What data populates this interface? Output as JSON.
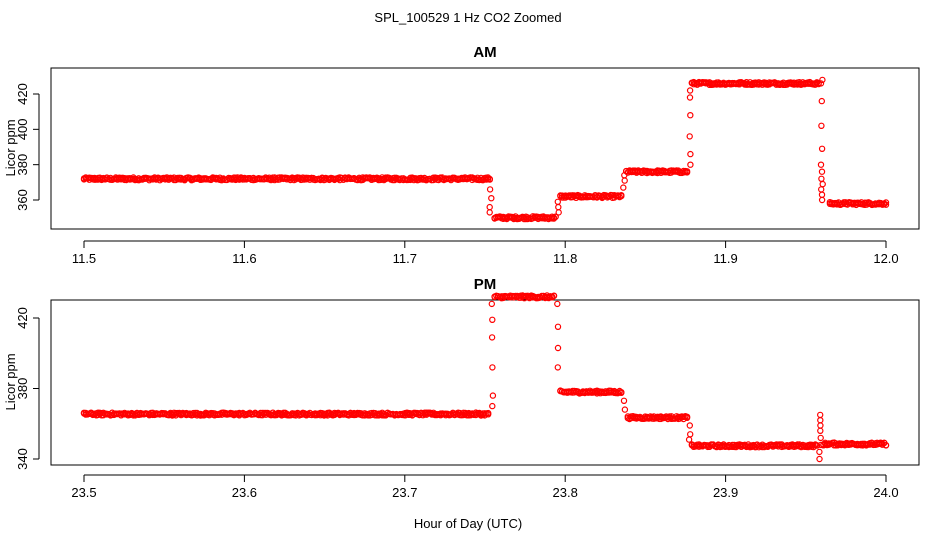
{
  "title": "SPL_100529 1 Hz CO2 Zoomed",
  "xlabel": "Hour of Day (UTC)",
  "colors": {
    "points": "#ff0000"
  },
  "chart_data": [
    {
      "type": "scatter",
      "panel_title": "AM",
      "ylabel": "Licor ppm",
      "xlim": [
        11.5,
        12.0
      ],
      "ylim": [
        345,
        435
      ],
      "xticks": [
        11.5,
        11.6,
        11.7,
        11.8,
        11.9,
        12.0
      ],
      "xtick_labels": [
        "11.5",
        "11.6",
        "11.7",
        "11.8",
        "11.9",
        "12.0"
      ],
      "yticks": [
        360,
        380,
        400,
        420
      ],
      "ytick_labels": [
        "360",
        "380",
        "400",
        "420"
      ],
      "series": [
        {
          "segments": [
            {
              "x_start": 11.5,
              "x_end": 11.753,
              "y": 372
            },
            {
              "x_start": 11.756,
              "x_end": 11.794,
              "y": 350
            },
            {
              "x_start": 11.797,
              "x_end": 11.835,
              "y": 362
            },
            {
              "x_start": 11.838,
              "x_end": 11.876,
              "y": 376
            },
            {
              "x_start": 11.879,
              "x_end": 11.958,
              "y": 426
            },
            {
              "x_start": 11.965,
              "x_end": 12.0,
              "y": 358
            }
          ],
          "transitions": [
            {
              "x": 11.7535,
              "y": [
                366,
                361,
                356,
                353
              ]
            },
            {
              "x": 11.7955,
              "y": [
                353,
                356,
                359
              ]
            },
            {
              "x": 11.8365,
              "y": [
                367,
                371,
                374
              ]
            },
            {
              "x": 11.8775,
              "y": [
                380,
                386,
                396,
                408,
                418,
                422
              ]
            },
            {
              "x": 11.96,
              "y": [
                428,
                426,
                416,
                402,
                389,
                380,
                376,
                372,
                369,
                366,
                363,
                360
              ]
            }
          ]
        }
      ]
    },
    {
      "type": "scatter",
      "panel_title": "PM",
      "ylabel": "Licor ppm",
      "xlim": [
        23.5,
        24.0
      ],
      "ylim": [
        338,
        440
      ],
      "xticks": [
        23.5,
        23.6,
        23.7,
        23.8,
        23.9,
        24.0
      ],
      "xtick_labels": [
        "23.5",
        "23.6",
        "23.7",
        "23.8",
        "23.9",
        "24.0"
      ],
      "yticks": [
        340,
        380,
        420
      ],
      "ytick_labels": [
        "340",
        "380",
        "420"
      ],
      "series": [
        {
          "segments": [
            {
              "x_start": 23.5,
              "x_end": 23.752,
              "y": 365.5
            },
            {
              "x_start": 23.756,
              "x_end": 23.793,
              "y": 432
            },
            {
              "x_start": 23.797,
              "x_end": 23.835,
              "y": 378
            },
            {
              "x_start": 23.839,
              "x_end": 23.876,
              "y": 363.5
            },
            {
              "x_start": 23.879,
              "x_end": 23.957,
              "y": 347.5
            },
            {
              "x_start": 23.961,
              "x_end": 24.0,
              "y": 348.5
            }
          ],
          "transitions": [
            {
              "x": 23.7545,
              "y": [
                370,
                376,
                392,
                409,
                419,
                428
              ]
            },
            {
              "x": 23.795,
              "y": [
                428,
                415,
                403,
                392
              ]
            },
            {
              "x": 23.837,
              "y": [
                373,
                368
              ]
            },
            {
              "x": 23.8775,
              "y": [
                359,
                354,
                351
              ]
            },
            {
              "x": 23.959,
              "y": [
                365,
                362,
                359,
                356,
                352,
                348,
                344,
                340
              ]
            }
          ]
        }
      ]
    }
  ]
}
